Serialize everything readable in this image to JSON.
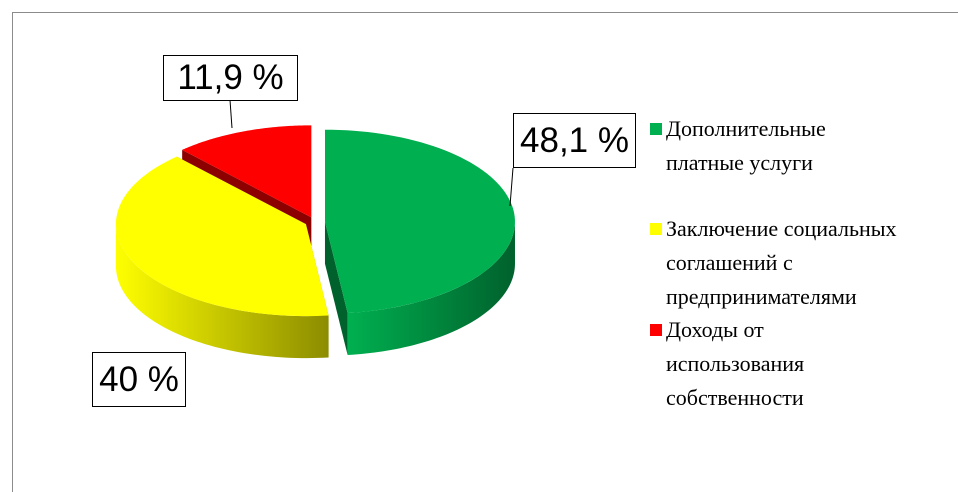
{
  "chart_data": {
    "type": "pie",
    "categories": [
      "Дополнительные платные услуги",
      "Заключение социальных соглашений с предпринимателями",
      "Доходы от использования собственности"
    ],
    "values": [
      48.1,
      40,
      11.9
    ],
    "value_labels": [
      "48,1 %",
      "40 %",
      "11,9 %"
    ],
    "colors": [
      "#00b050",
      "#ffff00",
      "#ff0000"
    ]
  }
}
